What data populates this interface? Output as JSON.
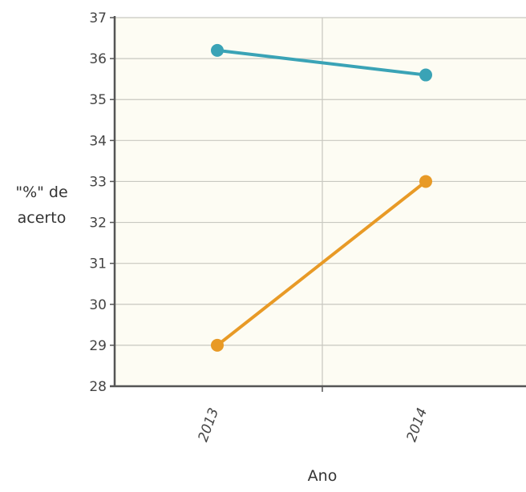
{
  "chart_data": {
    "type": "line",
    "categories": [
      "2013",
      "2014"
    ],
    "series": [
      {
        "values": [
          36.2,
          35.6
        ],
        "color": "#3aa3b6"
      },
      {
        "values": [
          29.0,
          33.0
        ],
        "color": "#e89a26"
      }
    ],
    "xlabel": "Ano",
    "ylabel": "\"%\" de acerto",
    "ylim": [
      28,
      37
    ],
    "yticks": [
      28,
      29,
      30,
      31,
      32,
      33,
      34,
      35,
      36,
      37
    ],
    "grid": true,
    "plot_background": "#fdfcf3",
    "grid_color": "#c8c8c0",
    "axis_color": "#555555"
  }
}
